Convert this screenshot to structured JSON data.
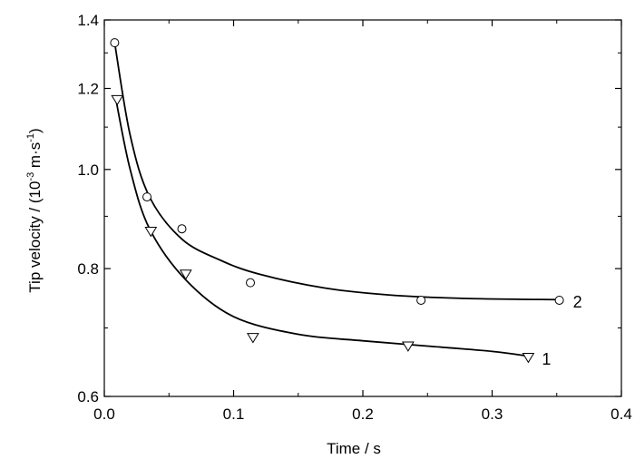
{
  "chart_data": {
    "type": "scatter",
    "title": "",
    "xlabel": "Time / s",
    "ylabel": {
      "prefix": "Tip velocity / (10",
      "exp1": "-3",
      "middle": " m·s",
      "exp2": "-1",
      "suffix": ")"
    },
    "xlim": [
      0.0,
      0.4
    ],
    "ylim": [
      0.6,
      1.4
    ],
    "yscale": "log",
    "xticks": [
      "0.0",
      "0.1",
      "0.2",
      "0.3",
      "0.4"
    ],
    "yticks": [
      "0.6",
      "0.8",
      "1.0",
      "1.2",
      "1.4"
    ],
    "grid": false,
    "legend": "none",
    "series": [
      {
        "name": "1",
        "marker": "triangle-down",
        "points": [
          {
            "x": 0.01,
            "y": 1.17
          },
          {
            "x": 0.036,
            "y": 0.87
          },
          {
            "x": 0.063,
            "y": 0.79
          },
          {
            "x": 0.115,
            "y": 0.685
          },
          {
            "x": 0.235,
            "y": 0.672
          },
          {
            "x": 0.328,
            "y": 0.655
          }
        ],
        "curve": [
          {
            "x": 0.009,
            "y": 1.17
          },
          {
            "x": 0.02,
            "y": 1.0
          },
          {
            "x": 0.035,
            "y": 0.875
          },
          {
            "x": 0.063,
            "y": 0.78
          },
          {
            "x": 0.1,
            "y": 0.718
          },
          {
            "x": 0.15,
            "y": 0.69
          },
          {
            "x": 0.2,
            "y": 0.68
          },
          {
            "x": 0.25,
            "y": 0.672
          },
          {
            "x": 0.3,
            "y": 0.664
          },
          {
            "x": 0.328,
            "y": 0.657
          }
        ]
      },
      {
        "name": "2",
        "marker": "circle",
        "points": [
          {
            "x": 0.008,
            "y": 1.33
          },
          {
            "x": 0.033,
            "y": 0.94
          },
          {
            "x": 0.06,
            "y": 0.875
          },
          {
            "x": 0.113,
            "y": 0.775
          },
          {
            "x": 0.245,
            "y": 0.745
          },
          {
            "x": 0.352,
            "y": 0.745
          }
        ],
        "curve": [
          {
            "x": 0.008,
            "y": 1.33
          },
          {
            "x": 0.02,
            "y": 1.08
          },
          {
            "x": 0.035,
            "y": 0.94
          },
          {
            "x": 0.06,
            "y": 0.855
          },
          {
            "x": 0.09,
            "y": 0.815
          },
          {
            "x": 0.12,
            "y": 0.79
          },
          {
            "x": 0.17,
            "y": 0.766
          },
          {
            "x": 0.22,
            "y": 0.754
          },
          {
            "x": 0.28,
            "y": 0.748
          },
          {
            "x": 0.352,
            "y": 0.746
          }
        ]
      }
    ]
  }
}
